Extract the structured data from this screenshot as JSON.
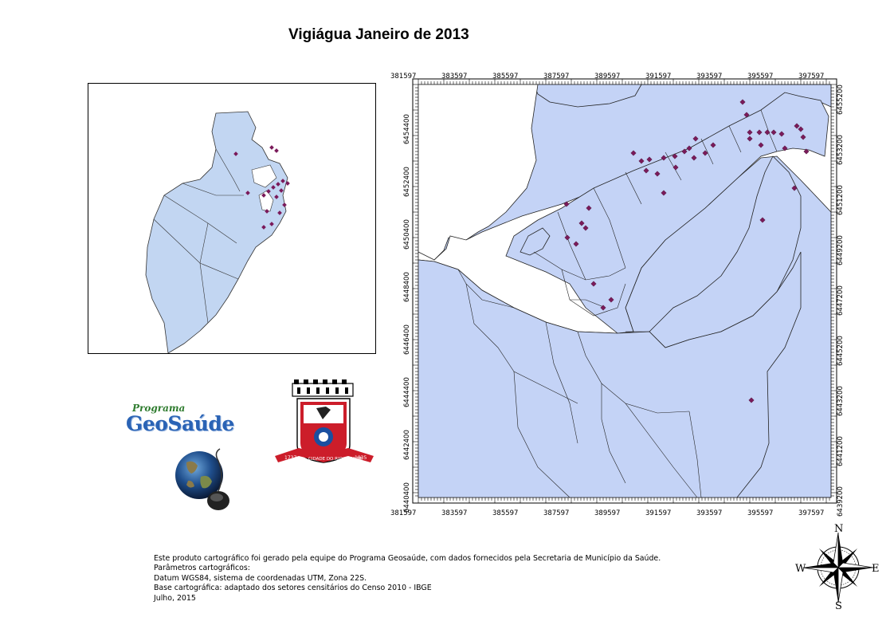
{
  "title": "Vigiágua Janeiro de 2013",
  "map": {
    "x_ticks": [
      "381597",
      "383597",
      "385597",
      "387597",
      "389597",
      "391597",
      "393597",
      "395597",
      "397597"
    ],
    "y_ticks_left": [
      "6454400",
      "6452400",
      "6450400",
      "6448400",
      "6446400",
      "6444400",
      "6442400",
      "6440400"
    ],
    "y_ticks_right": [
      "6455200",
      "6453200",
      "6451200",
      "6449200",
      "6447200",
      "6445200",
      "6443200",
      "6441200",
      "6439200"
    ],
    "colors": {
      "land": "#c4d3f6",
      "water": "#ffffff",
      "point": "#7a1a5a",
      "inset_land": "#c2d6f2"
    }
  },
  "logo": {
    "small": "Programa",
    "big": "GeoSaúde",
    "icon": "globe-mouse-icon"
  },
  "crest": {
    "left_year": "1737",
    "banner": "CIDADE DO RIO GRANDE",
    "right_year": "1835"
  },
  "compass": {
    "n": "N",
    "s": "S",
    "e": "E",
    "w": "W"
  },
  "footer": {
    "line1": "Este produto cartográfico foi gerado pela equipe do Programa Geosaúde, com dados fornecidos pela Secretaria de Município da Saúde.",
    "line2": "Parâmetros cartográficos:",
    "line3": "Datum WGS84, sistema de coordenadas UTM, Zona 22S.",
    "line4": "Base cartográfica: adaptado dos setores censitários do Censo 2010 - IBGE",
    "line5": "Julho, 2015"
  }
}
